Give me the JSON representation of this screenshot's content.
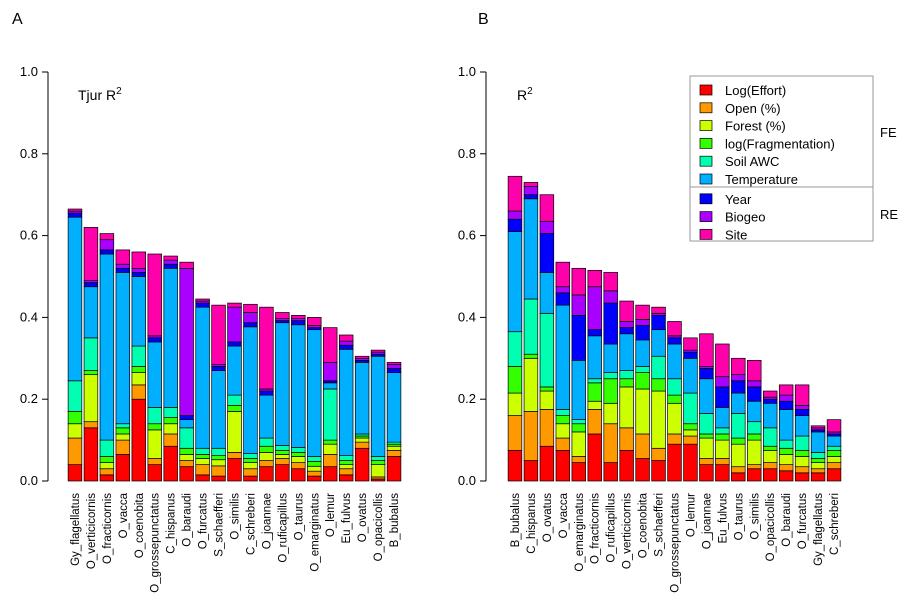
{
  "chart_data": [
    {
      "type": "bar",
      "stacked": true,
      "panel": "A",
      "annotation": "Tjur R",
      "annotation_sup": "2",
      "ylim": [
        0,
        1.0
      ],
      "yticks": [
        "0.0",
        "0.2",
        "0.4",
        "0.6",
        "0.8",
        "1.0"
      ],
      "categories": [
        "Gy_flagellatus",
        "O_verticicornis",
        "O_fracticornis",
        "O_vacca",
        "O_coenobita",
        "O_grossepunctatus",
        "C_hispanus",
        "O_baraudi",
        "O_furcatus",
        "S_schaefferi",
        "O_similis",
        "C_schreberi",
        "O_joannae",
        "O_ruficapillus",
        "O_taurus",
        "O_emarginatus",
        "O_lemur",
        "Eu_fulvus",
        "O_ovatus",
        "O_opacicollis",
        "B_bubalus"
      ],
      "series": [
        {
          "name": "Log(Effort)",
          "values": [
            0.04,
            0.13,
            0.015,
            0.065,
            0.2,
            0.04,
            0.085,
            0.035,
            0.015,
            0.012,
            0.055,
            0.012,
            0.035,
            0.04,
            0.03,
            0.012,
            0.035,
            0.015,
            0.08,
            0.005,
            0.06
          ]
        },
        {
          "name": "Open (%)",
          "values": [
            0.065,
            0.015,
            0.015,
            0.035,
            0.035,
            0.015,
            0.03,
            0.015,
            0.025,
            0.025,
            0.015,
            0.018,
            0.015,
            0.015,
            0.015,
            0.012,
            0.03,
            0.015,
            0.015,
            0.005,
            0.015
          ]
        },
        {
          "name": "Forest (%)",
          "values": [
            0.035,
            0.115,
            0.015,
            0.015,
            0.03,
            0.07,
            0.025,
            0.015,
            0.015,
            0.015,
            0.1,
            0.015,
            0.02,
            0.01,
            0.015,
            0.012,
            0.025,
            0.01,
            0.01,
            0.03,
            0.01
          ]
        },
        {
          "name": "log(Fragmentation)",
          "values": [
            0.03,
            0.01,
            0.015,
            0.015,
            0.015,
            0.015,
            0.015,
            0.015,
            0.01,
            0.01,
            0.015,
            0.01,
            0.015,
            0.01,
            0.01,
            0.012,
            0.01,
            0.01,
            0.005,
            0.01,
            0.005
          ]
        },
        {
          "name": "Soil AWC",
          "values": [
            0.075,
            0.08,
            0.04,
            0.01,
            0.05,
            0.04,
            0.025,
            0.05,
            0.015,
            0.018,
            0.025,
            0.012,
            0.02,
            0.012,
            0.012,
            0.012,
            0.125,
            0.012,
            0.005,
            0.01,
            0.005
          ]
        },
        {
          "name": "Temperature",
          "values": [
            0.4,
            0.125,
            0.455,
            0.37,
            0.17,
            0.16,
            0.34,
            0.02,
            0.345,
            0.19,
            0.12,
            0.31,
            0.105,
            0.3,
            0.3,
            0.31,
            0.015,
            0.26,
            0.175,
            0.245,
            0.17
          ]
        },
        {
          "name": "Year",
          "values": [
            0.01,
            0.01,
            0.01,
            0.01,
            0.01,
            0.01,
            0.01,
            0.01,
            0.01,
            0.01,
            0.01,
            0.01,
            0.01,
            0.005,
            0.01,
            0.005,
            0.005,
            0.01,
            0.005,
            0.005,
            0.01
          ]
        },
        {
          "name": "Biogeo",
          "values": [
            0.005,
            0.005,
            0.025,
            0.01,
            0.01,
            0.005,
            0.01,
            0.36,
            0.005,
            0.005,
            0.085,
            0.025,
            0.005,
            0.005,
            0.005,
            0.005,
            0.045,
            0.01,
            0.005,
            0.005,
            0.01
          ]
        },
        {
          "name": "Site",
          "values": [
            0.005,
            0.13,
            0.015,
            0.035,
            0.04,
            0.2,
            0.01,
            0.015,
            0.005,
            0.145,
            0.01,
            0.02,
            0.2,
            0.015,
            0.008,
            0.02,
            0.085,
            0.015,
            0.005,
            0.005,
            0.005
          ]
        }
      ]
    },
    {
      "type": "bar",
      "stacked": true,
      "panel": "B",
      "annotation": "R",
      "annotation_sup": "2",
      "ylim": [
        0,
        1.0
      ],
      "yticks": [
        "0.0",
        "0.2",
        "0.4",
        "0.6",
        "0.8",
        "1.0"
      ],
      "categories": [
        "B_bubalus",
        "C_hispanus",
        "O_ovatus",
        "O_vacca",
        "O_emarginatus",
        "O_fracticornis",
        "O_ruficapillus",
        "O_verticicornis",
        "O_coenobita",
        "S_schaefferi",
        "O_grossepunctatus",
        "O_lemur",
        "O_joannae",
        "Eu_fulvus",
        "O_taurus",
        "O_similis",
        "O_opacicollis",
        "O_baraudi",
        "O_furcatus",
        "Gy_flagellatus",
        "C_schreberi"
      ],
      "series": [
        {
          "name": "Log(Effort)",
          "values": [
            0.075,
            0.05,
            0.085,
            0.075,
            0.045,
            0.115,
            0.045,
            0.075,
            0.055,
            0.05,
            0.09,
            0.09,
            0.04,
            0.04,
            0.02,
            0.03,
            0.03,
            0.025,
            0.02,
            0.02,
            0.03
          ]
        },
        {
          "name": "Open (%)",
          "values": [
            0.085,
            0.12,
            0.09,
            0.03,
            0.015,
            0.06,
            0.095,
            0.055,
            0.06,
            0.03,
            0.025,
            0.02,
            0.015,
            0.015,
            0.015,
            0.01,
            0.015,
            0.015,
            0.015,
            0.01,
            0.015
          ]
        },
        {
          "name": "Forest (%)",
          "values": [
            0.055,
            0.13,
            0.045,
            0.035,
            0.06,
            0.02,
            0.05,
            0.1,
            0.11,
            0.14,
            0.075,
            0.015,
            0.05,
            0.045,
            0.055,
            0.06,
            0.03,
            0.025,
            0.025,
            0.015,
            0.015
          ]
        },
        {
          "name": "log(Fragmentation)",
          "values": [
            0.065,
            0.01,
            0.01,
            0.02,
            0.02,
            0.045,
            0.06,
            0.02,
            0.04,
            0.03,
            0.02,
            0.015,
            0.01,
            0.015,
            0.015,
            0.015,
            0.01,
            0.015,
            0.015,
            0.01,
            0.015
          ]
        },
        {
          "name": "Soil AWC",
          "values": [
            0.085,
            0.135,
            0.18,
            0.015,
            0.01,
            0.01,
            0.015,
            0.02,
            0.015,
            0.055,
            0.04,
            0.075,
            0.05,
            0.015,
            0.06,
            0.03,
            0.045,
            0.02,
            0.035,
            0.015,
            0.01
          ]
        },
        {
          "name": "Temperature",
          "values": [
            0.245,
            0.245,
            0.1,
            0.255,
            0.145,
            0.105,
            0.07,
            0.09,
            0.065,
            0.065,
            0.085,
            0.085,
            0.085,
            0.05,
            0.05,
            0.05,
            0.06,
            0.075,
            0.05,
            0.05,
            0.025
          ]
        },
        {
          "name": "Year",
          "values": [
            0.03,
            0.01,
            0.095,
            0.03,
            0.11,
            0.015,
            0.1,
            0.015,
            0.035,
            0.035,
            0.015,
            0.015,
            0.025,
            0.05,
            0.03,
            0.035,
            0.01,
            0.02,
            0.015,
            0.005,
            0.005
          ]
        },
        {
          "name": "Biogeo",
          "values": [
            0.02,
            0.02,
            0.03,
            0.015,
            0.05,
            0.105,
            0.03,
            0.015,
            0.015,
            0.005,
            0.005,
            0.005,
            0.005,
            0.025,
            0.015,
            0.015,
            0.005,
            0.015,
            0.01,
            0.005,
            0.005
          ]
        },
        {
          "name": "Site",
          "values": [
            0.085,
            0.01,
            0.065,
            0.06,
            0.065,
            0.04,
            0.045,
            0.05,
            0.035,
            0.015,
            0.035,
            0.03,
            0.08,
            0.08,
            0.04,
            0.05,
            0.015,
            0.025,
            0.05,
            0.005,
            0.03
          ]
        }
      ]
    }
  ],
  "legend": {
    "items": [
      {
        "label": "Log(Effort)",
        "color": "#ff0000"
      },
      {
        "label": "Open (%)",
        "color": "#ff9900"
      },
      {
        "label": "Forest (%)",
        "color": "#ccff00"
      },
      {
        "label": "log(Fragmentation)",
        "color": "#33ff00"
      },
      {
        "label": "Soil AWC",
        "color": "#00ffb0"
      },
      {
        "label": "Temperature",
        "color": "#00b0ff"
      },
      {
        "label": "Year",
        "color": "#0000ff"
      },
      {
        "label": "Biogeo",
        "color": "#aa00ff"
      },
      {
        "label": "Site",
        "color": "#ff00aa"
      }
    ],
    "group_fe": "FE",
    "group_re": "RE"
  }
}
